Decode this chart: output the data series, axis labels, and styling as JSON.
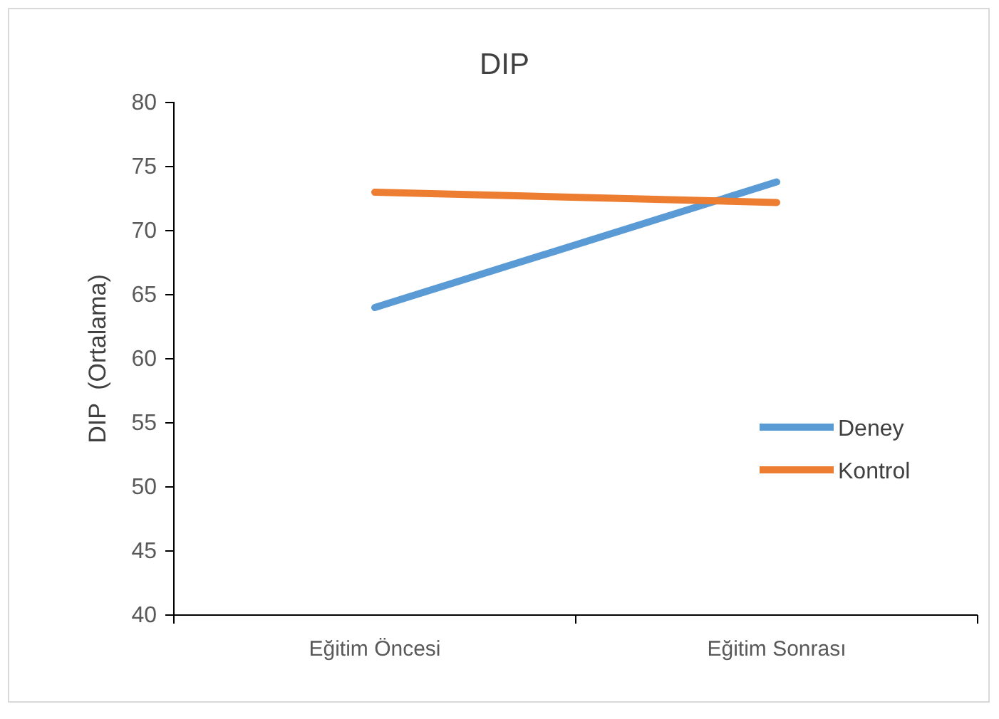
{
  "chart_data": {
    "type": "line",
    "title": "DIP",
    "ylabel": "DIP  (Ortalama)",
    "categories": [
      "Eğitim Öncesi",
      "Eğitim Sonrası"
    ],
    "series": [
      {
        "name": "Deney",
        "color": "#5b9bd5",
        "values": [
          64,
          73.8
        ]
      },
      {
        "name": "Kontrol",
        "color": "#ed7d31",
        "values": [
          73,
          72.2
        ]
      }
    ],
    "ylim": [
      40,
      80
    ],
    "yticks": [
      40,
      45,
      50,
      55,
      60,
      65,
      70,
      75,
      80
    ],
    "grid": false,
    "legend": "right",
    "marker": "none",
    "line_style": "solid"
  }
}
